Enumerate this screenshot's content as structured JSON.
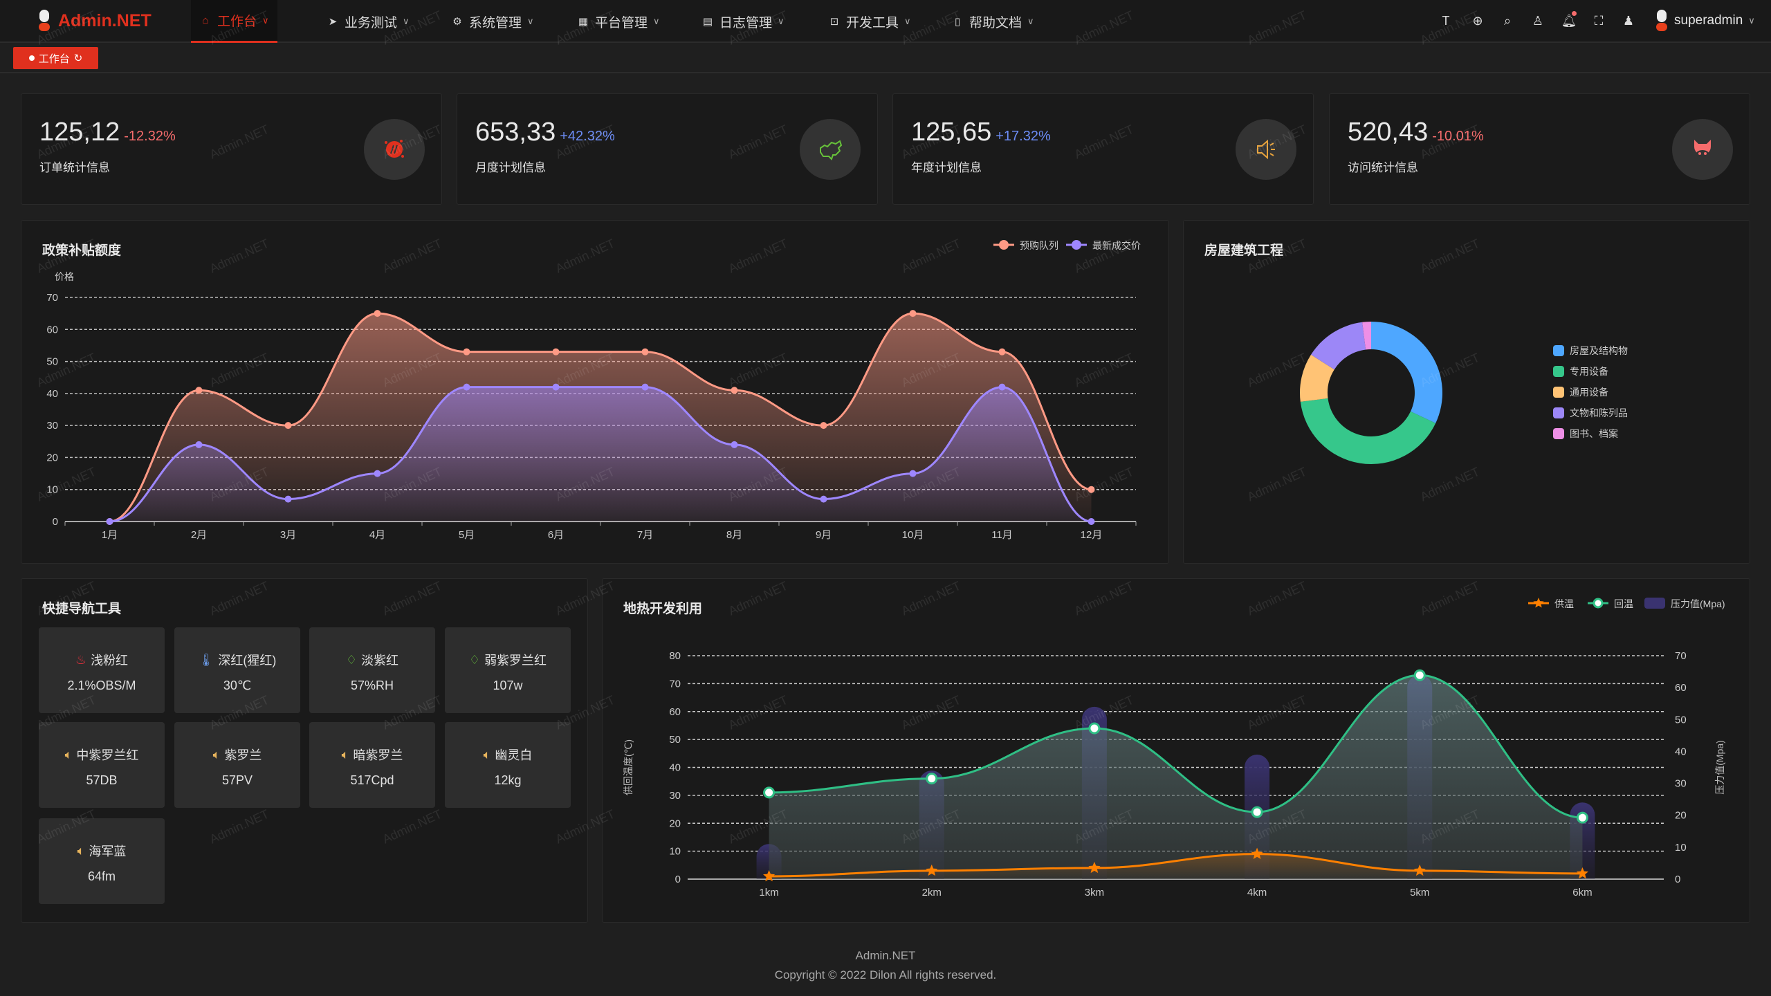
{
  "app": {
    "title": "Admin.NET",
    "watermark": "Admin.NET"
  },
  "nav": {
    "items": [
      {
        "label": "工作台",
        "icon": "home-icon",
        "active": true
      },
      {
        "label": "业务测试",
        "icon": "send-icon"
      },
      {
        "label": "系统管理",
        "icon": "gear-icon"
      },
      {
        "label": "平台管理",
        "icon": "grid-icon"
      },
      {
        "label": "日志管理",
        "icon": "document-icon"
      },
      {
        "label": "开发工具",
        "icon": "chip-icon"
      },
      {
        "label": "帮助文档",
        "icon": "book-icon"
      }
    ]
  },
  "header_tools": [
    "font-size-icon",
    "language-icon",
    "search-icon",
    "skin-icon",
    "bell-icon",
    "fullscreen-icon",
    "user-icon"
  ],
  "user": {
    "name": "superadmin",
    "has_notification": true
  },
  "tags": [
    {
      "label": "工作台",
      "active": true
    }
  ],
  "stats": [
    {
      "value": "125,12",
      "trend": "-12.32%",
      "trend_color": "#f56c6c",
      "label": "订单统计信息",
      "icon": "fire-badge-icon",
      "icon_color": "#e0301e"
    },
    {
      "value": "653,33",
      "trend": "+42.32%",
      "trend_color": "#6c8cf5",
      "label": "月度计划信息",
      "icon": "china-map-icon",
      "icon_color": "#67c23a"
    },
    {
      "value": "125,65",
      "trend": "+17.32%",
      "trend_color": "#6c8cf5",
      "label": "年度计划信息",
      "icon": "speaker-icon",
      "icon_color": "#e6a23c"
    },
    {
      "value": "520,43",
      "trend": "-10.01%",
      "trend_color": "#f56c6c",
      "label": "访问统计信息",
      "icon": "pig-icon",
      "icon_color": "#f56c6c"
    }
  ],
  "policy_chart": {
    "title": "政策补贴额度",
    "chart_data": {
      "type": "area",
      "ylabel": "价格",
      "ylim": [
        0,
        70
      ],
      "yticks": [
        "0",
        "10",
        "20",
        "30",
        "40",
        "50",
        "60",
        "70"
      ],
      "categories": [
        "1月",
        "2月",
        "3月",
        "4月",
        "5月",
        "6月",
        "7月",
        "8月",
        "9月",
        "10月",
        "11月",
        "12月"
      ],
      "grid": true,
      "legend_position": "top-right",
      "series": [
        {
          "name": "预购队列",
          "color": "#ff9a85",
          "values": [
            0,
            41,
            30,
            65,
            53,
            53,
            53,
            41,
            30,
            65,
            53,
            10
          ]
        },
        {
          "name": "最新成交价",
          "color": "#9e87ff",
          "values": [
            0,
            24,
            7,
            15,
            42,
            42,
            42,
            24,
            7,
            15,
            42,
            0
          ]
        }
      ]
    }
  },
  "building_chart": {
    "title": "房屋建筑工程",
    "chart_data": {
      "type": "pie",
      "donut": true,
      "legend_position": "right",
      "slices": [
        {
          "name": "房屋及结构物",
          "value": 32,
          "color": "#4ea7ff"
        },
        {
          "name": "专用设备",
          "value": 41,
          "color": "#36c78b"
        },
        {
          "name": "通用设备",
          "value": 11,
          "color": "#ffc375"
        },
        {
          "name": "文物和陈列品",
          "value": 14,
          "color": "#9c87f7"
        },
        {
          "name": "图书、档案",
          "value": 2,
          "color": "#ee8fe6"
        }
      ]
    }
  },
  "quick_nav": {
    "title": "快捷导航工具",
    "items": [
      {
        "name": "浅粉红",
        "value": "2.1%OBS/M",
        "icon": "cake-icon",
        "color": "#e0303c"
      },
      {
        "name": "深红(猩红)",
        "value": "30℃",
        "icon": "thermometer-icon",
        "color": "#6b9be8"
      },
      {
        "name": "淡紫红",
        "value": "57%RH",
        "icon": "drops-icon",
        "color": "#67c23a"
      },
      {
        "name": "弱紫罗兰红",
        "value": "107w",
        "icon": "drops-icon",
        "color": "#67c23a"
      },
      {
        "name": "中紫罗兰红",
        "value": "57DB",
        "icon": "speaker-icon",
        "color": "#e6b35c"
      },
      {
        "name": "紫罗兰",
        "value": "57PV",
        "icon": "speaker-icon",
        "color": "#e6b35c"
      },
      {
        "name": "暗紫罗兰",
        "value": "517Cpd",
        "icon": "speaker-icon",
        "color": "#e6b35c"
      },
      {
        "name": "幽灵白",
        "value": "12kg",
        "icon": "speaker-icon",
        "color": "#e6b35c"
      },
      {
        "name": "海军蓝",
        "value": "64fm",
        "icon": "speaker-icon",
        "color": "#e6b35c"
      }
    ]
  },
  "geo_chart": {
    "title": "地热开发利用",
    "chart_data": {
      "type": "line",
      "categories": [
        "1km",
        "2km",
        "3km",
        "4km",
        "5km",
        "6km"
      ],
      "ylabel": "供回温度(℃)",
      "ylim": [
        0,
        80
      ],
      "yticks": [
        "0",
        "10",
        "20",
        "30",
        "40",
        "50",
        "60",
        "70",
        "80"
      ],
      "y2label": "压力值(Mpa)",
      "y2lim": [
        0,
        70
      ],
      "y2ticks": [
        "0",
        "10",
        "20",
        "30",
        "40",
        "50",
        "60",
        "70"
      ],
      "grid": true,
      "legend_position": "top-right",
      "series": [
        {
          "name": "供温",
          "type": "line",
          "axis": "left",
          "color": "#ff8000",
          "values": [
            1,
            3,
            4,
            9,
            3,
            2
          ]
        },
        {
          "name": "回温",
          "type": "line",
          "axis": "left",
          "color": "#2fbf85",
          "values": [
            31,
            36,
            54,
            24,
            73,
            22
          ]
        },
        {
          "name": "压力值(Mpa)",
          "type": "bar",
          "axis": "right",
          "color": "#3a3370",
          "values": [
            11,
            34,
            54,
            39,
            64,
            24
          ]
        }
      ]
    }
  },
  "footer": {
    "brand": "Admin.NET",
    "copyright": "Copyright © 2022 Dilon All rights reserved."
  }
}
